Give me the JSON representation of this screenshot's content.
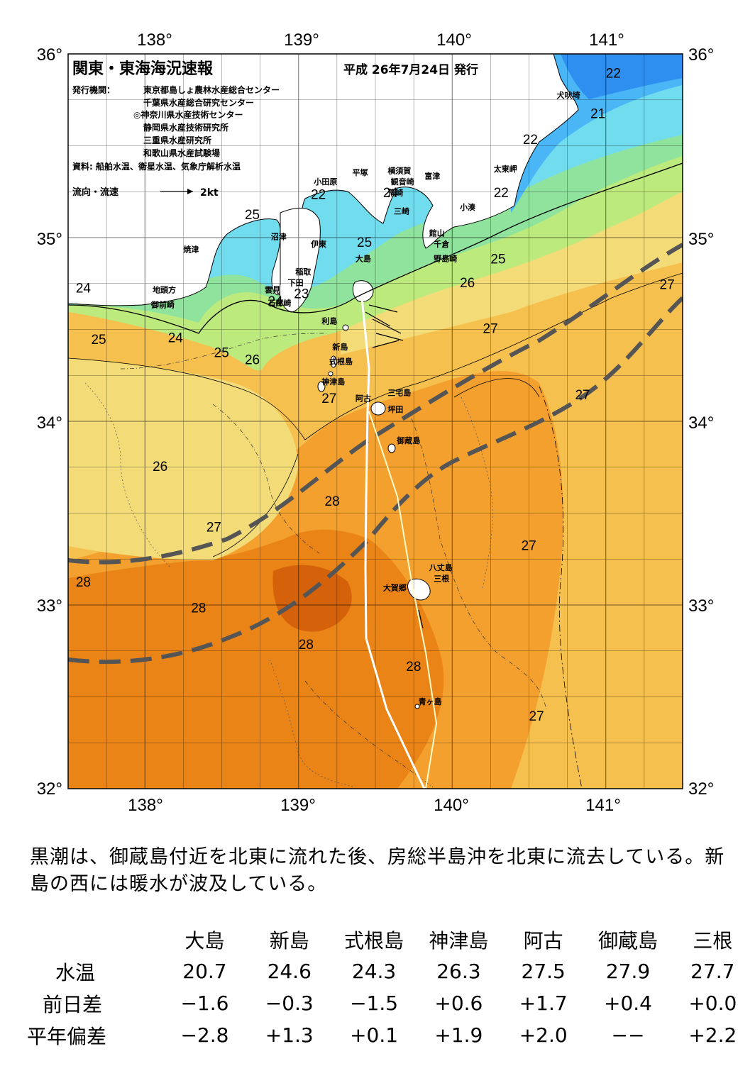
{
  "header": {
    "title": "関東・東海海況速報",
    "issued": "平成 26年7月24日 発行",
    "issuer_label": "発行機関：",
    "issuers": [
      "東京都島しょ農林水産総合センター",
      "千葉県水産総合研究センター",
      "◎神奈川県水産技術センター",
      "静岡県水産技術研究所",
      "三重県水産研究所",
      "和歌山県水産試験場"
    ],
    "source": "資料: 船舶水温、衛星水温、気象庁解析水温",
    "current_legend": "流向・流速",
    "current_scale": "2kt"
  },
  "axes": {
    "lon_labels": [
      "138°",
      "139°",
      "140°",
      "141°"
    ],
    "lat_labels": [
      "36°",
      "35°",
      "34°",
      "33°",
      "32°"
    ]
  },
  "map": {
    "lon_range": [
      137.5,
      141.5
    ],
    "lat_range": [
      32,
      36
    ],
    "colors": {
      "sea_21": "#2e8ff0",
      "sea_22": "#4ab6f6",
      "sea_23": "#72dcef",
      "sea_24": "#8fe39c",
      "sea_25": "#bdea7c",
      "sea_26": "#f3dc78",
      "sea_27": "#f6c04f",
      "sea_28": "#f3a02e",
      "sea_29": "#eb8416",
      "sea_30": "#d5620a",
      "land": "#ffffff",
      "kuroshio": "#555555"
    },
    "places": [
      {
        "name": "犬吠埼",
        "lon": 140.68,
        "lat": 35.76
      },
      {
        "name": "太東岬",
        "lon": 140.27,
        "lat": 35.36
      },
      {
        "name": "小湊",
        "lon": 140.05,
        "lat": 35.15
      },
      {
        "name": "館山",
        "lon": 139.85,
        "lat": 35.01
      },
      {
        "name": "千倉",
        "lon": 139.88,
        "lat": 34.95
      },
      {
        "name": "野島崎",
        "lon": 139.88,
        "lat": 34.87
      },
      {
        "name": "富津",
        "lon": 139.82,
        "lat": 35.32
      },
      {
        "name": "横須賀",
        "lon": 139.58,
        "lat": 35.35
      },
      {
        "name": "観音崎",
        "lon": 139.6,
        "lat": 35.29
      },
      {
        "name": "荒崎",
        "lon": 139.58,
        "lat": 35.23
      },
      {
        "name": "三崎",
        "lon": 139.62,
        "lat": 35.13
      },
      {
        "name": "平塚",
        "lon": 139.35,
        "lat": 35.34
      },
      {
        "name": "小田原",
        "lon": 139.1,
        "lat": 35.29
      },
      {
        "name": "伊東",
        "lon": 139.08,
        "lat": 34.95
      },
      {
        "name": "沼津",
        "lon": 138.82,
        "lat": 34.99
      },
      {
        "name": "焼津",
        "lon": 138.25,
        "lat": 34.92
      },
      {
        "name": "稲取",
        "lon": 138.98,
        "lat": 34.8
      },
      {
        "name": "下田",
        "lon": 138.93,
        "lat": 34.74
      },
      {
        "name": "雲見",
        "lon": 138.78,
        "lat": 34.7
      },
      {
        "name": "石廊崎",
        "lon": 138.8,
        "lat": 34.63
      },
      {
        "name": "地頭方",
        "lon": 138.05,
        "lat": 34.7
      },
      {
        "name": "御前崎",
        "lon": 138.04,
        "lat": 34.62
      },
      {
        "name": "大島",
        "lon": 139.37,
        "lat": 34.87
      },
      {
        "name": "利島",
        "lon": 139.15,
        "lat": 34.53
      },
      {
        "name": "新島",
        "lon": 139.22,
        "lat": 34.39
      },
      {
        "name": "式根島",
        "lon": 139.2,
        "lat": 34.31
      },
      {
        "name": "神津島",
        "lon": 139.15,
        "lat": 34.2
      },
      {
        "name": "三宅島",
        "lon": 139.58,
        "lat": 34.14
      },
      {
        "name": "阿古",
        "lon": 139.37,
        "lat": 34.11
      },
      {
        "name": "坪田",
        "lon": 139.58,
        "lat": 34.05
      },
      {
        "name": "御蔵島",
        "lon": 139.64,
        "lat": 33.88
      },
      {
        "name": "八丈島",
        "lon": 139.85,
        "lat": 33.19
      },
      {
        "name": "三根",
        "lon": 139.88,
        "lat": 33.13
      },
      {
        "name": "大賀郷",
        "lon": 139.55,
        "lat": 33.08
      },
      {
        "name": "青ヶ島",
        "lon": 139.78,
        "lat": 32.46
      }
    ],
    "sst_labels": [
      {
        "text": "22",
        "lon": 141.0,
        "lat": 35.87
      },
      {
        "text": "21",
        "lon": 140.9,
        "lat": 35.65
      },
      {
        "text": "22",
        "lon": 140.46,
        "lat": 35.51
      },
      {
        "text": "22",
        "lon": 140.27,
        "lat": 35.22
      },
      {
        "text": "22",
        "lon": 139.08,
        "lat": 35.21
      },
      {
        "text": "24",
        "lon": 139.55,
        "lat": 35.22
      },
      {
        "text": "25",
        "lon": 138.65,
        "lat": 35.1
      },
      {
        "text": "25",
        "lon": 139.38,
        "lat": 34.95
      },
      {
        "text": "25",
        "lon": 140.25,
        "lat": 34.86
      },
      {
        "text": "24",
        "lon": 137.55,
        "lat": 34.7
      },
      {
        "text": "24",
        "lon": 138.8,
        "lat": 34.63
      },
      {
        "text": "23",
        "lon": 138.97,
        "lat": 34.67
      },
      {
        "text": "26",
        "lon": 140.05,
        "lat": 34.73
      },
      {
        "text": "27",
        "lon": 141.35,
        "lat": 34.72
      },
      {
        "text": "25",
        "lon": 137.65,
        "lat": 34.42
      },
      {
        "text": "24",
        "lon": 138.15,
        "lat": 34.43
      },
      {
        "text": "25",
        "lon": 138.45,
        "lat": 34.35
      },
      {
        "text": "26",
        "lon": 138.65,
        "lat": 34.31
      },
      {
        "text": "27",
        "lon": 140.2,
        "lat": 34.48
      },
      {
        "text": "27",
        "lon": 139.15,
        "lat": 34.1
      },
      {
        "text": "27",
        "lon": 140.8,
        "lat": 34.12
      },
      {
        "text": "26",
        "lon": 138.05,
        "lat": 33.73
      },
      {
        "text": "28",
        "lon": 139.17,
        "lat": 33.54
      },
      {
        "text": "27",
        "lon": 138.4,
        "lat": 33.4
      },
      {
        "text": "27",
        "lon": 140.45,
        "lat": 33.3
      },
      {
        "text": "28",
        "lon": 137.55,
        "lat": 33.1
      },
      {
        "text": "28",
        "lon": 138.3,
        "lat": 32.96
      },
      {
        "text": "28",
        "lon": 139.0,
        "lat": 32.76
      },
      {
        "text": "28",
        "lon": 139.7,
        "lat": 32.64
      },
      {
        "text": "27",
        "lon": 140.5,
        "lat": 32.37
      }
    ]
  },
  "summary": "黒潮は、御蔵島付近を北東に流れた後、房総半島沖を北東に流去している。新島の西には暖水が波及している。",
  "stats": {
    "stations": [
      "大島",
      "新島",
      "式根島",
      "神津島",
      "阿古",
      "御蔵島",
      "三根"
    ],
    "rows": [
      {
        "label": "水温",
        "values": [
          "20.7",
          "24.6",
          "24.3",
          "26.3",
          "27.5",
          "27.9",
          "27.7"
        ]
      },
      {
        "label": "前日差",
        "values": [
          "−1.6",
          "−0.3",
          "−1.5",
          "+0.6",
          "+1.7",
          "+0.4",
          "+0.0"
        ]
      },
      {
        "label": "平年偏差",
        "values": [
          "−2.8",
          "+1.3",
          "+0.1",
          "+1.9",
          "+2.0",
          "−−",
          "+2.2"
        ]
      }
    ]
  }
}
